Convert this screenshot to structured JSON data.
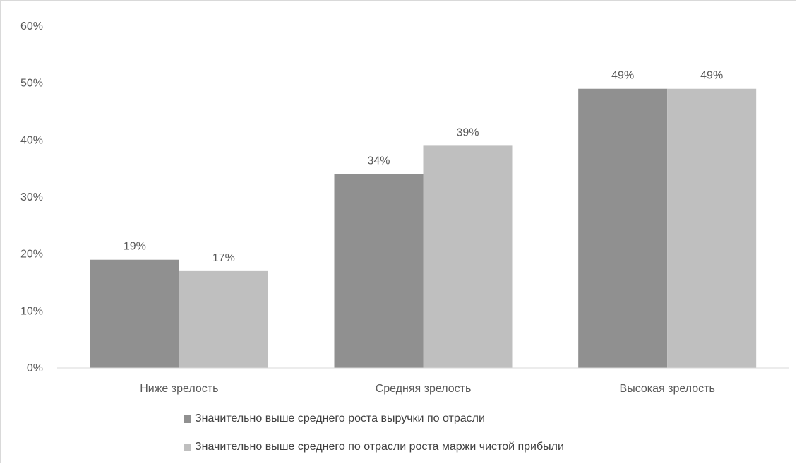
{
  "chart_data": {
    "type": "bar",
    "categories": [
      "Ниже зрелость",
      "Средняя зрелость",
      "Высокая зрелость"
    ],
    "series": [
      {
        "name": "Значительно выше среднего роста выручки по отрасли",
        "values": [
          19,
          34,
          49
        ],
        "labels": [
          "19%",
          "34%",
          "49%"
        ],
        "color": "#909090"
      },
      {
        "name": "Значительно выше среднего по отрасли роста маржи чистой прибыли",
        "values": [
          17,
          39,
          49
        ],
        "labels": [
          "17%",
          "39%",
          "49%"
        ],
        "color": "#bfbfbf"
      }
    ],
    "ylim": [
      0,
      60
    ],
    "yticks": [
      "0%",
      "10%",
      "20%",
      "30%",
      "40%",
      "50%",
      "60%"
    ],
    "grid": false,
    "legend_position": "bottom",
    "title": "",
    "xlabel": "",
    "ylabel": ""
  }
}
